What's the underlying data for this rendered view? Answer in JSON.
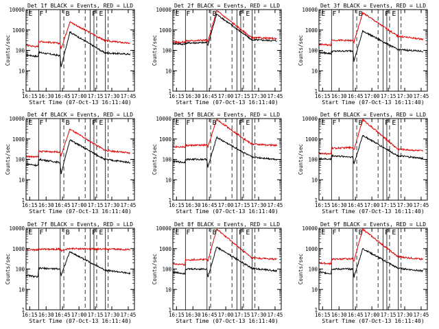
{
  "figure": {
    "background": "#ffffff",
    "events_color": "#000000",
    "lld_color": "#e00000"
  },
  "panels_common": {
    "ylabel": "Counts/sec",
    "xlabel": "Start Time (07-Oct-13 16:11:40)",
    "xticks": [
      "16:15",
      "16:30",
      "16:45",
      "17:00",
      "17:15",
      "17:30",
      "17:45"
    ],
    "yticks": [
      "1",
      "10",
      "100",
      "1000",
      "10000"
    ],
    "region_labels": [
      "E",
      "F",
      "B",
      "F",
      "E"
    ]
  },
  "chart_data": [
    {
      "type": "line",
      "title": "Det 1f BLACK = Events, RED = LLD",
      "x_unit": "minutes since 16:11:40",
      "xlim": [
        0,
        99
      ],
      "ylim": [
        1,
        10000
      ],
      "yscale": "log",
      "series": [
        {
          "name": "BLACK = Events",
          "color": "#000000",
          "x": [
            0,
            11,
            11.5,
            31,
            32,
            40,
            72,
            95
          ],
          "y": [
            60,
            50,
            80,
            55,
            15,
            800,
            75,
            65
          ]
        },
        {
          "name": "RED = LLD",
          "color": "#e00000",
          "x": [
            0,
            11,
            11.5,
            31,
            32,
            40,
            72,
            95
          ],
          "y": [
            180,
            150,
            280,
            220,
            120,
            2500,
            300,
            220
          ]
        }
      ]
    },
    {
      "type": "line",
      "title": "Det 2f BLACK = Events, RED = LLD",
      "x_unit": "minutes since 16:11:40",
      "xlim": [
        0,
        99
      ],
      "ylim": [
        1,
        10000
      ],
      "yscale": "log",
      "series": [
        {
          "name": "BLACK = Events",
          "color": "#000000",
          "x": [
            0,
            11,
            11.5,
            31,
            32,
            40,
            72,
            95
          ],
          "y": [
            220,
            200,
            230,
            240,
            180,
            6000,
            330,
            300
          ]
        },
        {
          "name": "RED = LLD",
          "color": "#e00000",
          "x": [
            0,
            11,
            11.5,
            31,
            32,
            40,
            72,
            95
          ],
          "y": [
            260,
            250,
            290,
            320,
            260,
            9000,
            420,
            380
          ]
        }
      ]
    },
    {
      "type": "line",
      "title": "Det 3f BLACK = Events, RED = LLD",
      "x_unit": "minutes since 16:11:40",
      "xlim": [
        0,
        99
      ],
      "ylim": [
        1,
        10000
      ],
      "yscale": "log",
      "series": [
        {
          "name": "BLACK = Events",
          "color": "#000000",
          "x": [
            0,
            11,
            11.5,
            31,
            32,
            40,
            72,
            95
          ],
          "y": [
            80,
            70,
            90,
            95,
            30,
            900,
            110,
            90
          ]
        },
        {
          "name": "RED = LLD",
          "color": "#e00000",
          "x": [
            0,
            11,
            11.5,
            31,
            32,
            40,
            72,
            95
          ],
          "y": [
            200,
            180,
            320,
            300,
            250,
            7000,
            500,
            350
          ]
        }
      ]
    },
    {
      "type": "line",
      "title": "Det 4f BLACK = Events, RED = LLD",
      "x_unit": "minutes since 16:11:40",
      "xlim": [
        0,
        99
      ],
      "ylim": [
        1,
        10000
      ],
      "yscale": "log",
      "series": [
        {
          "name": "BLACK = Events",
          "color": "#000000",
          "x": [
            0,
            11,
            11.5,
            31,
            32,
            40,
            72,
            95
          ],
          "y": [
            60,
            50,
            100,
            70,
            20,
            900,
            100,
            70
          ]
        },
        {
          "name": "RED = LLD",
          "color": "#e00000",
          "x": [
            0,
            11,
            11.5,
            31,
            32,
            40,
            72,
            95
          ],
          "y": [
            140,
            130,
            250,
            230,
            150,
            3000,
            280,
            200
          ]
        }
      ]
    },
    {
      "type": "line",
      "title": "Det 5f BLACK = Events, RED = LLD",
      "x_unit": "minutes since 16:11:40",
      "xlim": [
        0,
        99
      ],
      "ylim": [
        1,
        10000
      ],
      "yscale": "log",
      "series": [
        {
          "name": "BLACK = Events",
          "color": "#000000",
          "x": [
            0,
            11,
            11.5,
            31,
            32,
            40,
            72,
            95
          ],
          "y": [
            80,
            70,
            100,
            100,
            40,
            1200,
            130,
            100
          ]
        },
        {
          "name": "RED = LLD",
          "color": "#e00000",
          "x": [
            0,
            11,
            11.5,
            31,
            32,
            40,
            72,
            95
          ],
          "y": [
            420,
            400,
            480,
            500,
            400,
            9000,
            560,
            480
          ]
        }
      ]
    },
    {
      "type": "line",
      "title": "Det 6f BLACK = Events, RED = LLD",
      "x_unit": "minutes since 16:11:40",
      "xlim": [
        0,
        99
      ],
      "ylim": [
        1,
        10000
      ],
      "yscale": "log",
      "series": [
        {
          "name": "BLACK = Events",
          "color": "#000000",
          "x": [
            0,
            11,
            11.5,
            31,
            32,
            40,
            72,
            95
          ],
          "y": [
            110,
            100,
            150,
            130,
            60,
            1500,
            150,
            110
          ]
        },
        {
          "name": "RED = LLD",
          "color": "#e00000",
          "x": [
            0,
            11,
            11.5,
            31,
            32,
            40,
            72,
            95
          ],
          "y": [
            200,
            180,
            350,
            380,
            300,
            9000,
            320,
            260
          ]
        }
      ]
    },
    {
      "type": "line",
      "title": "Det 7f BLACK = Events, RED = LLD",
      "x_unit": "minutes since 16:11:40",
      "xlim": [
        0,
        99
      ],
      "ylim": [
        1,
        10000
      ],
      "yscale": "log",
      "series": [
        {
          "name": "BLACK = Events",
          "color": "#000000",
          "x": [
            0,
            11,
            11.5,
            31,
            32,
            40,
            72,
            95
          ],
          "y": [
            50,
            40,
            110,
            100,
            50,
            700,
            90,
            60
          ]
        },
        {
          "name": "RED = LLD",
          "color": "#e00000",
          "x": [
            0,
            11,
            11.5,
            31,
            32,
            40,
            72,
            95
          ],
          "y": [
            900,
            850,
            950,
            950,
            800,
            1000,
            950,
            900
          ]
        }
      ]
    },
    {
      "type": "line",
      "title": "Det 8f BLACK = Events, RED = LLD",
      "x_unit": "minutes since 16:11:40",
      "xlim": [
        0,
        99
      ],
      "ylim": [
        1,
        10000
      ],
      "yscale": "log",
      "series": [
        {
          "name": "BLACK = Events",
          "color": "#000000",
          "x": [
            0,
            11,
            11.5,
            31,
            32,
            40,
            72,
            95
          ],
          "y": [
            70,
            60,
            100,
            100,
            40,
            1200,
            110,
            80
          ]
        },
        {
          "name": "RED = LLD",
          "color": "#e00000",
          "x": [
            0,
            11,
            11.5,
            31,
            32,
            40,
            72,
            95
          ],
          "y": [
            180,
            160,
            280,
            300,
            250,
            9000,
            350,
            300
          ]
        }
      ]
    },
    {
      "type": "line",
      "title": "Det 9f BLACK = Events, RED = LLD",
      "x_unit": "minutes since 16:11:40",
      "xlim": [
        0,
        99
      ],
      "ylim": [
        1,
        10000
      ],
      "yscale": "log",
      "series": [
        {
          "name": "BLACK = Events",
          "color": "#000000",
          "x": [
            0,
            11,
            11.5,
            31,
            32,
            40,
            72,
            95
          ],
          "y": [
            70,
            60,
            100,
            100,
            40,
            1000,
            110,
            80
          ]
        },
        {
          "name": "RED = LLD",
          "color": "#e00000",
          "x": [
            0,
            11,
            11.5,
            31,
            32,
            40,
            72,
            95
          ],
          "y": [
            200,
            180,
            300,
            320,
            250,
            9000,
            400,
            300
          ]
        }
      ]
    }
  ]
}
